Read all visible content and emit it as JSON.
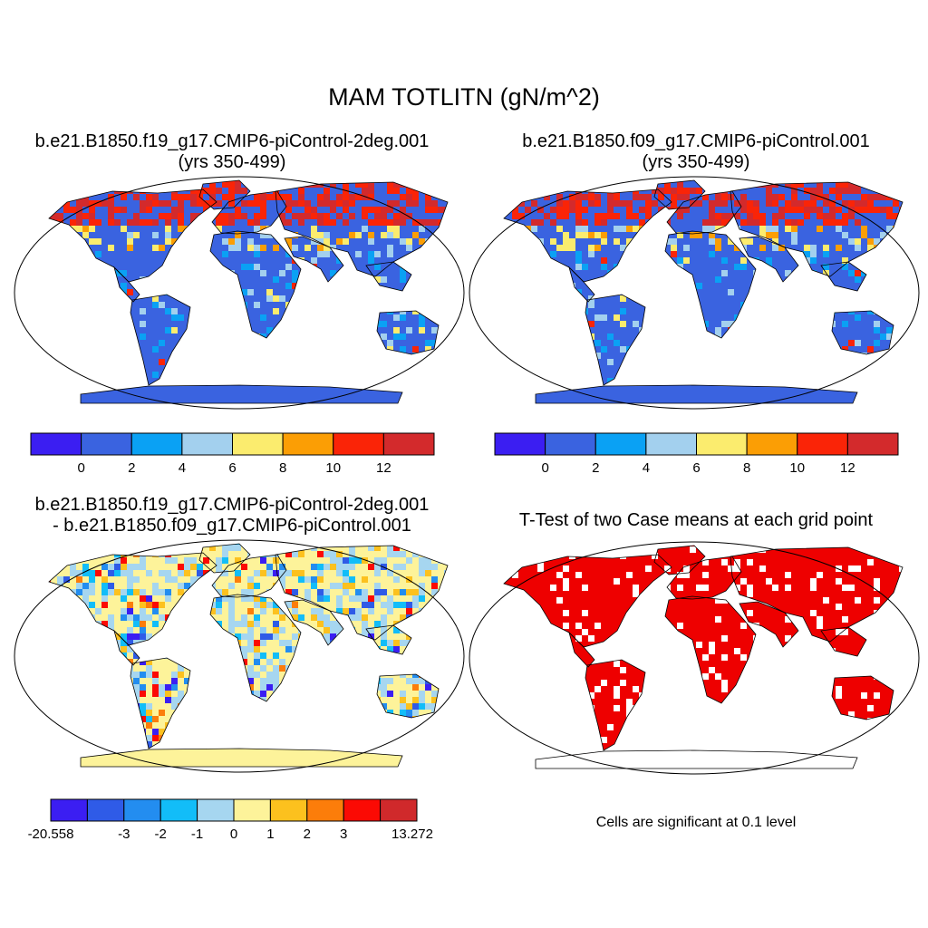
{
  "title": "MAM TOTLITN (gN/m^2)",
  "panels": [
    {
      "line1": "b.e21.B1850.f19_g17.CMIP6-piControl-2deg.001",
      "line2": "(yrs 350-499)"
    },
    {
      "line1": "b.e21.B1850.f09_g17.CMIP6-piControl.001",
      "line2": "(yrs 350-499)"
    },
    {
      "line1": "b.e21.B1850.f19_g17.CMIP6-piControl-2deg.001",
      "line2": "- b.e21.B1850.f09_g17.CMIP6-piControl.001"
    },
    {
      "line1": "T-Test of two Case means at each grid point"
    }
  ],
  "colorbars": {
    "case": {
      "colors": [
        "#3b1ef2",
        "#3a63e0",
        "#0aa1f4",
        "#a3d0ee",
        "#fbec6e",
        "#fb9e05",
        "#fa2407",
        "#d32a2c"
      ],
      "labels": [
        "0",
        "2",
        "4",
        "6",
        "8",
        "10",
        "12"
      ]
    },
    "diff": {
      "colors": [
        "#3b1ef2",
        "#2f5be7",
        "#238df0",
        "#12bdf8",
        "#a6d6f0",
        "#fdf39a",
        "#fcc11e",
        "#fc7d0a",
        "#fb0a04",
        "#d0292b"
      ],
      "labels": [
        "-20.558",
        "-3",
        "-2",
        "-1",
        "0",
        "1",
        "2",
        "3",
        "13.272"
      ]
    }
  },
  "significance_color": "#ee0000",
  "significance_note": "Cells are significant at 0.1 level"
}
